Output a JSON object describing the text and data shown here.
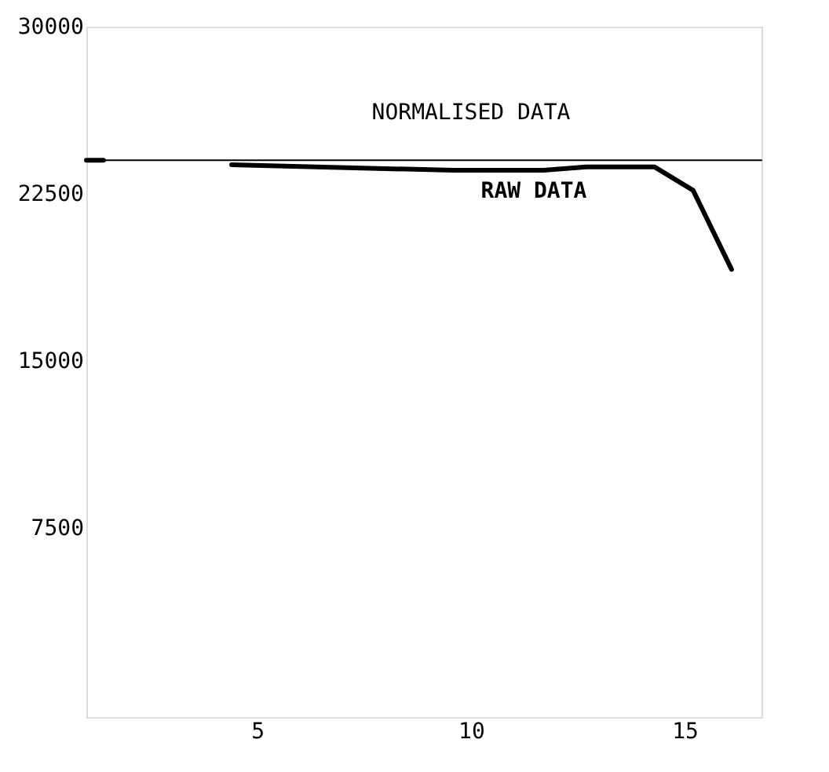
{
  "chart_data": {
    "type": "line",
    "xlim": [
      1,
      16.8
    ],
    "ylim": [
      -1000,
      30000
    ],
    "xticks": [
      5,
      10,
      15
    ],
    "yticks": [
      7500,
      15000,
      22500,
      30000
    ],
    "grid": false,
    "line_style": "solid",
    "marker": "none",
    "series": [
      {
        "color": "#000000",
        "x": [
          1,
          16.8
        ],
        "values": [
          24000,
          24000
        ]
      },
      {
        "color": "#000000",
        "x": [
          1,
          1.4,
          2.5,
          4.4,
          9.6,
          11.7,
          12.7,
          14.3,
          15.2,
          16.1
        ],
        "values": [
          24000,
          24000,
          null,
          23800,
          23550,
          23550,
          23700,
          23700,
          22650,
          19100
        ]
      }
    ],
    "annotations": [
      "NORMALISED DATA",
      "RAW DATA"
    ]
  }
}
